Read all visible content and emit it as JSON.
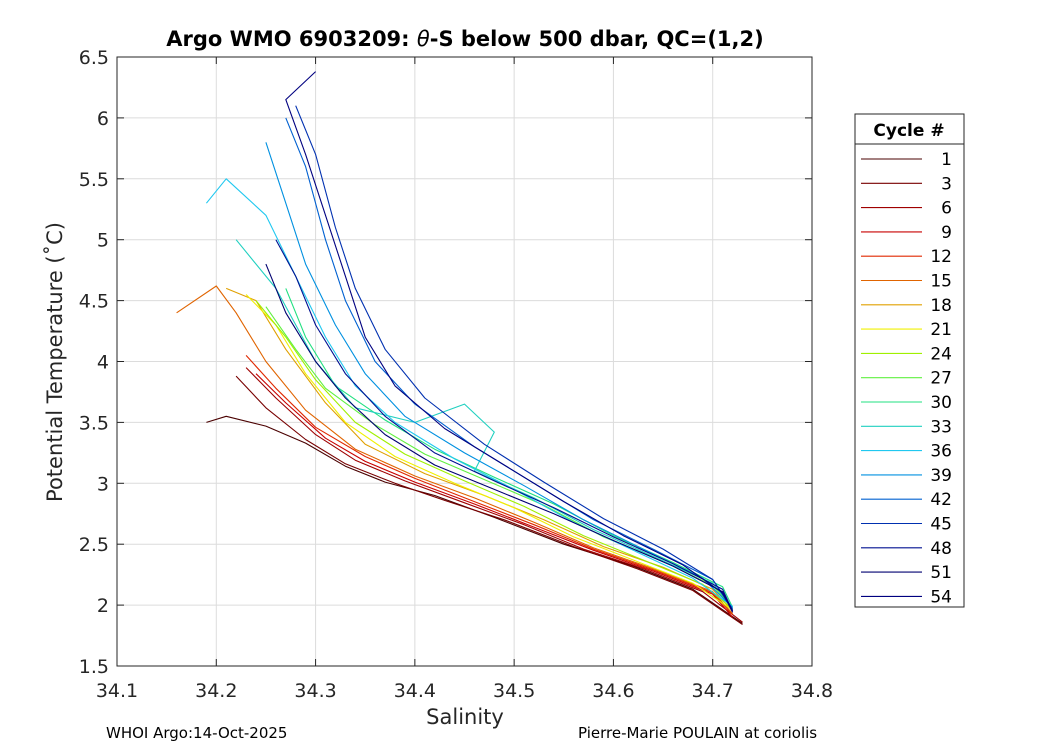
{
  "chart_data": {
    "type": "line",
    "title": "Argo WMO 6903209: θ-S below 500 dbar,  QC=(1,2)",
    "title_parts": {
      "pre": "Argo WMO 6903209: ",
      "theta": "θ",
      "post": "-S below 500 dbar,  QC=(1,2)"
    },
    "xlabel": "Salinity",
    "ylabel": "Potential Temperature (˚C)",
    "xlim": [
      34.1,
      34.8
    ],
    "ylim": [
      1.5,
      6.5
    ],
    "xticks": [
      "34.1",
      "34.2",
      "34.3",
      "34.4",
      "34.5",
      "34.6",
      "34.7",
      "34.8"
    ],
    "yticks": [
      "1.5",
      "2",
      "2.5",
      "3",
      "3.5",
      "4",
      "4.5",
      "5",
      "5.5",
      "6",
      "6.5"
    ],
    "grid": true,
    "legend_title": "Cycle #",
    "legend_position": "outside-right",
    "series": [
      {
        "name": "1",
        "color": "#4a0000",
        "points": [
          [
            34.19,
            3.5
          ],
          [
            34.21,
            3.55
          ],
          [
            34.25,
            3.47
          ],
          [
            34.29,
            3.33
          ],
          [
            34.33,
            3.14
          ],
          [
            34.37,
            3.01
          ],
          [
            34.42,
            2.9
          ],
          [
            34.48,
            2.72
          ],
          [
            34.55,
            2.5
          ],
          [
            34.62,
            2.32
          ],
          [
            34.68,
            2.13
          ],
          [
            34.73,
            1.85
          ]
        ]
      },
      {
        "name": "3",
        "color": "#780000",
        "points": [
          [
            34.22,
            3.88
          ],
          [
            34.25,
            3.62
          ],
          [
            34.29,
            3.36
          ],
          [
            34.33,
            3.16
          ],
          [
            34.38,
            3.0
          ],
          [
            34.43,
            2.86
          ],
          [
            34.49,
            2.7
          ],
          [
            34.56,
            2.48
          ],
          [
            34.62,
            2.31
          ],
          [
            34.68,
            2.12
          ],
          [
            34.73,
            1.84
          ]
        ]
      },
      {
        "name": "6",
        "color": "#a00000",
        "points": [
          [
            34.23,
            3.95
          ],
          [
            34.26,
            3.7
          ],
          [
            34.3,
            3.4
          ],
          [
            34.34,
            3.19
          ],
          [
            34.39,
            3.02
          ],
          [
            34.45,
            2.84
          ],
          [
            34.51,
            2.66
          ],
          [
            34.57,
            2.46
          ],
          [
            34.63,
            2.3
          ],
          [
            34.69,
            2.11
          ],
          [
            34.73,
            1.86
          ]
        ]
      },
      {
        "name": "9",
        "color": "#c80000",
        "points": [
          [
            34.24,
            3.9
          ],
          [
            34.27,
            3.66
          ],
          [
            34.31,
            3.37
          ],
          [
            34.35,
            3.18
          ],
          [
            34.4,
            3.01
          ],
          [
            34.46,
            2.83
          ],
          [
            34.52,
            2.64
          ],
          [
            34.58,
            2.45
          ],
          [
            34.64,
            2.28
          ],
          [
            34.7,
            2.09
          ],
          [
            34.72,
            1.9
          ]
        ]
      },
      {
        "name": "12",
        "color": "#e02800",
        "points": [
          [
            34.23,
            4.05
          ],
          [
            34.26,
            3.78
          ],
          [
            34.3,
            3.46
          ],
          [
            34.35,
            3.22
          ],
          [
            34.4,
            3.04
          ],
          [
            34.46,
            2.85
          ],
          [
            34.52,
            2.66
          ],
          [
            34.58,
            2.46
          ],
          [
            34.64,
            2.29
          ],
          [
            34.7,
            2.1
          ],
          [
            34.72,
            1.92
          ]
        ]
      },
      {
        "name": "15",
        "color": "#e06400",
        "points": [
          [
            34.16,
            4.4
          ],
          [
            34.2,
            4.62
          ],
          [
            34.22,
            4.4
          ],
          [
            34.25,
            4.0
          ],
          [
            34.29,
            3.6
          ],
          [
            34.34,
            3.28
          ],
          [
            34.4,
            3.06
          ],
          [
            34.46,
            2.88
          ],
          [
            34.52,
            2.68
          ],
          [
            34.58,
            2.47
          ],
          [
            34.64,
            2.3
          ],
          [
            34.7,
            2.11
          ],
          [
            34.72,
            1.93
          ]
        ]
      },
      {
        "name": "18",
        "color": "#e0a000",
        "points": [
          [
            34.21,
            4.6
          ],
          [
            34.24,
            4.5
          ],
          [
            34.27,
            4.1
          ],
          [
            34.31,
            3.66
          ],
          [
            34.35,
            3.32
          ],
          [
            34.41,
            3.08
          ],
          [
            34.47,
            2.9
          ],
          [
            34.53,
            2.7
          ],
          [
            34.59,
            2.48
          ],
          [
            34.65,
            2.31
          ],
          [
            34.7,
            2.13
          ],
          [
            34.72,
            1.95
          ]
        ]
      },
      {
        "name": "21",
        "color": "#f0f000",
        "points": [
          [
            34.23,
            4.55
          ],
          [
            34.26,
            4.3
          ],
          [
            34.29,
            3.9
          ],
          [
            34.33,
            3.5
          ],
          [
            34.38,
            3.22
          ],
          [
            34.44,
            3.0
          ],
          [
            34.5,
            2.8
          ],
          [
            34.56,
            2.56
          ],
          [
            34.62,
            2.37
          ],
          [
            34.68,
            2.18
          ],
          [
            34.72,
            1.96
          ]
        ]
      },
      {
        "name": "24",
        "color": "#a0f000",
        "points": [
          [
            34.24,
            4.5
          ],
          [
            34.27,
            4.2
          ],
          [
            34.3,
            3.85
          ],
          [
            34.34,
            3.5
          ],
          [
            34.39,
            3.24
          ],
          [
            34.45,
            3.02
          ],
          [
            34.51,
            2.81
          ],
          [
            34.57,
            2.57
          ],
          [
            34.63,
            2.37
          ],
          [
            34.69,
            2.17
          ],
          [
            34.72,
            1.97
          ]
        ]
      },
      {
        "name": "27",
        "color": "#60f040",
        "points": [
          [
            34.25,
            4.45
          ],
          [
            34.28,
            4.1
          ],
          [
            34.31,
            3.78
          ],
          [
            34.36,
            3.48
          ],
          [
            34.41,
            3.24
          ],
          [
            34.47,
            3.03
          ],
          [
            34.53,
            2.82
          ],
          [
            34.59,
            2.56
          ],
          [
            34.65,
            2.36
          ],
          [
            34.7,
            2.16
          ],
          [
            34.72,
            1.98
          ]
        ]
      },
      {
        "name": "30",
        "color": "#20e080",
        "points": [
          [
            34.27,
            4.6
          ],
          [
            34.29,
            4.2
          ],
          [
            34.32,
            3.8
          ],
          [
            34.37,
            3.52
          ],
          [
            34.42,
            3.28
          ],
          [
            34.48,
            3.05
          ],
          [
            34.54,
            2.83
          ],
          [
            34.6,
            2.57
          ],
          [
            34.66,
            2.35
          ],
          [
            34.71,
            2.15
          ],
          [
            34.72,
            1.98
          ]
        ]
      },
      {
        "name": "33",
        "color": "#20d0c0",
        "points": [
          [
            34.22,
            5.0
          ],
          [
            34.26,
            4.6
          ],
          [
            34.3,
            4.0
          ],
          [
            34.34,
            3.62
          ],
          [
            34.4,
            3.5
          ],
          [
            34.45,
            3.65
          ],
          [
            34.48,
            3.42
          ],
          [
            34.46,
            3.1
          ],
          [
            34.52,
            2.88
          ],
          [
            34.58,
            2.62
          ],
          [
            34.64,
            2.4
          ],
          [
            34.7,
            2.18
          ],
          [
            34.72,
            1.98
          ]
        ]
      },
      {
        "name": "36",
        "color": "#20c8f0",
        "points": [
          [
            34.19,
            5.3
          ],
          [
            34.21,
            5.5
          ],
          [
            34.25,
            5.2
          ],
          [
            34.28,
            4.7
          ],
          [
            34.31,
            4.2
          ],
          [
            34.34,
            3.8
          ],
          [
            34.38,
            3.5
          ],
          [
            34.44,
            3.2
          ],
          [
            34.5,
            2.95
          ],
          [
            34.56,
            2.68
          ],
          [
            34.62,
            2.45
          ],
          [
            34.68,
            2.22
          ],
          [
            34.72,
            1.99
          ]
        ]
      },
      {
        "name": "39",
        "color": "#0090e0",
        "points": [
          [
            34.25,
            5.8
          ],
          [
            34.27,
            5.3
          ],
          [
            34.29,
            4.8
          ],
          [
            34.32,
            4.3
          ],
          [
            34.35,
            3.9
          ],
          [
            34.39,
            3.55
          ],
          [
            34.45,
            3.25
          ],
          [
            34.51,
            2.98
          ],
          [
            34.57,
            2.7
          ],
          [
            34.63,
            2.46
          ],
          [
            34.69,
            2.22
          ],
          [
            34.72,
            1.98
          ]
        ]
      },
      {
        "name": "42",
        "color": "#0060d0",
        "points": [
          [
            34.27,
            6.0
          ],
          [
            34.29,
            5.6
          ],
          [
            34.31,
            5.0
          ],
          [
            34.33,
            4.5
          ],
          [
            34.36,
            4.0
          ],
          [
            34.4,
            3.65
          ],
          [
            34.46,
            3.3
          ],
          [
            34.52,
            3.0
          ],
          [
            34.58,
            2.7
          ],
          [
            34.64,
            2.46
          ],
          [
            34.7,
            2.21
          ],
          [
            34.72,
            1.97
          ]
        ]
      },
      {
        "name": "45",
        "color": "#0030b0",
        "points": [
          [
            34.28,
            6.1
          ],
          [
            34.3,
            5.7
          ],
          [
            34.32,
            5.1
          ],
          [
            34.34,
            4.6
          ],
          [
            34.37,
            4.1
          ],
          [
            34.41,
            3.7
          ],
          [
            34.47,
            3.32
          ],
          [
            34.53,
            3.01
          ],
          [
            34.59,
            2.71
          ],
          [
            34.65,
            2.46
          ],
          [
            34.7,
            2.21
          ],
          [
            34.72,
            1.96
          ]
        ]
      },
      {
        "name": "48",
        "color": "#001090",
        "points": [
          [
            34.26,
            5.0
          ],
          [
            34.28,
            4.7
          ],
          [
            34.3,
            4.3
          ],
          [
            34.33,
            3.9
          ],
          [
            34.37,
            3.55
          ],
          [
            34.42,
            3.25
          ],
          [
            34.48,
            3.02
          ],
          [
            34.54,
            2.8
          ],
          [
            34.6,
            2.56
          ],
          [
            34.66,
            2.34
          ],
          [
            34.71,
            2.13
          ],
          [
            34.72,
            1.95
          ]
        ]
      },
      {
        "name": "51",
        "color": "#000070",
        "points": [
          [
            34.25,
            4.8
          ],
          [
            34.27,
            4.4
          ],
          [
            34.3,
            4.0
          ],
          [
            34.33,
            3.7
          ],
          [
            34.37,
            3.4
          ],
          [
            34.42,
            3.15
          ],
          [
            34.48,
            2.95
          ],
          [
            34.54,
            2.75
          ],
          [
            34.6,
            2.53
          ],
          [
            34.66,
            2.32
          ],
          [
            34.71,
            2.11
          ],
          [
            34.72,
            1.95
          ]
        ]
      },
      {
        "name": "54",
        "color": "#000080",
        "points": [
          [
            34.3,
            6.38
          ],
          [
            34.27,
            6.15
          ],
          [
            34.29,
            5.7
          ],
          [
            34.31,
            5.2
          ],
          [
            34.33,
            4.7
          ],
          [
            34.35,
            4.2
          ],
          [
            34.38,
            3.8
          ],
          [
            34.43,
            3.45
          ],
          [
            34.49,
            3.15
          ],
          [
            34.55,
            2.85
          ],
          [
            34.61,
            2.57
          ],
          [
            34.67,
            2.33
          ],
          [
            34.71,
            2.1
          ],
          [
            34.72,
            1.94
          ]
        ]
      }
    ]
  },
  "footer": {
    "left": "WHOI Argo:14-Oct-2025",
    "right": "Pierre-Marie POULAIN at coriolis"
  }
}
